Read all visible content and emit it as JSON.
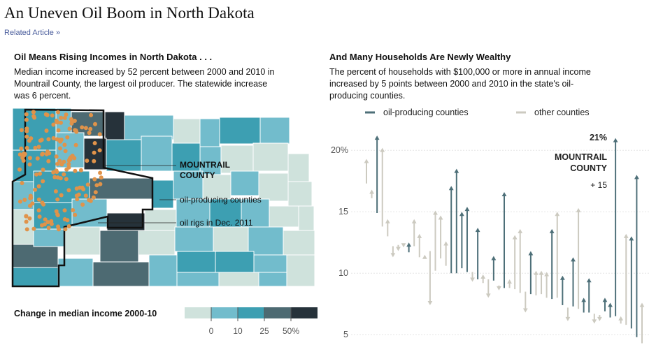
{
  "page": {
    "title": "An Uneven Oil Boom in North Dakota",
    "related_link": "Related Article »"
  },
  "left": {
    "heading": "Oil Means Rising Incomes in North Dakota . . .",
    "description": "Median income increased by 52 percent between 2000 and 2010 in Mountrail County, the largest oil producer. The statewide increase was 6 percent.",
    "labels": {
      "county_line1": "MOUNTRAIL",
      "county_line2": "COUNTY",
      "oil_producing": "oil-producing counties",
      "oil_rigs": "oil rigs in Dec. 2011"
    },
    "scale": {
      "title": "Change in median income 2000-10",
      "ticks": [
        "0",
        "10",
        "25",
        "50%"
      ],
      "colors": [
        "#cfe2dc",
        "#72bccc",
        "#3d9fb2",
        "#4d6a72",
        "#26323a"
      ]
    },
    "colors": {
      "light": "#cfe2dc",
      "mid": "#72bccc",
      "teal": "#3d9fb2",
      "slate": "#4d6a72",
      "dark": "#26323a",
      "rig": "#e0934a"
    }
  },
  "right": {
    "heading": "And Many Households Are Newly Wealthy",
    "description": "The percent of households with $100,000 or more in annual income increased by 5 points between 2000 and 2010 in the state's oil-producing counties.",
    "annotation": {
      "value": "21%",
      "county_line1": "MOUNTRAIL",
      "county_line2": "COUNTY",
      "change": "+ 15"
    }
  },
  "chart_data": {
    "type": "arrow",
    "title": "And Many Households Are Newly Wealthy",
    "ylabel": "",
    "yticks": [
      20,
      15,
      10,
      5
    ],
    "ytick_labels": [
      "20%",
      "15",
      "10",
      "5"
    ],
    "ylim": [
      4.5,
      22
    ],
    "series_meta": [
      {
        "name": "oil-producing counties",
        "color": "#4d6f78"
      },
      {
        "name": "other counties",
        "color": "#cccac0"
      }
    ],
    "arrows": [
      {
        "from": 17.3,
        "to": 19.3,
        "group": "other"
      },
      {
        "from": 16.1,
        "to": 16.8,
        "group": "other"
      },
      {
        "from": 14.9,
        "to": 21.2,
        "group": "oil"
      },
      {
        "from": 13.8,
        "to": 20.2,
        "group": "other"
      },
      {
        "from": 13.0,
        "to": 14.4,
        "group": "other"
      },
      {
        "from": 12.2,
        "to": 11.3,
        "group": "other"
      },
      {
        "from": 12.3,
        "to": 11.8,
        "group": "other"
      },
      {
        "from": 12.2,
        "to": 12.1,
        "group": "other"
      },
      {
        "from": 11.7,
        "to": 12.5,
        "group": "oil"
      },
      {
        "from": 12.2,
        "to": 14.4,
        "group": "other"
      },
      {
        "from": 11.3,
        "to": 13.2,
        "group": "other"
      },
      {
        "from": 11.3,
        "to": 11.5,
        "group": "other"
      },
      {
        "from": 11.8,
        "to": 7.4,
        "group": "other"
      },
      {
        "from": 10.2,
        "to": 15.1,
        "group": "other"
      },
      {
        "from": 11.2,
        "to": 14.7,
        "group": "other"
      },
      {
        "from": 10.6,
        "to": 12.6,
        "group": "other"
      },
      {
        "from": 10.0,
        "to": 17.1,
        "group": "oil"
      },
      {
        "from": 10.0,
        "to": 18.5,
        "group": "oil"
      },
      {
        "from": 10.4,
        "to": 15.0,
        "group": "oil"
      },
      {
        "from": 10.1,
        "to": 15.4,
        "group": "oil"
      },
      {
        "from": 10.1,
        "to": 9.3,
        "group": "other"
      },
      {
        "from": 9.5,
        "to": 13.7,
        "group": "oil"
      },
      {
        "from": 9.2,
        "to": 9.9,
        "group": "other"
      },
      {
        "from": 9.5,
        "to": 8.0,
        "group": "other"
      },
      {
        "from": 9.4,
        "to": 11.4,
        "group": "oil"
      },
      {
        "from": 9.0,
        "to": 8.6,
        "group": "other"
      },
      {
        "from": 8.8,
        "to": 16.6,
        "group": "oil"
      },
      {
        "from": 8.8,
        "to": 9.5,
        "group": "other"
      },
      {
        "from": 8.7,
        "to": 13.1,
        "group": "other"
      },
      {
        "from": 8.4,
        "to": 13.6,
        "group": "other"
      },
      {
        "from": 8.5,
        "to": 6.8,
        "group": "other"
      },
      {
        "from": 8.3,
        "to": 11.8,
        "group": "oil"
      },
      {
        "from": 8.2,
        "to": 10.2,
        "group": "other"
      },
      {
        "from": 8.3,
        "to": 10.2,
        "group": "other"
      },
      {
        "from": 8.0,
        "to": 10.1,
        "group": "other"
      },
      {
        "from": 7.9,
        "to": 13.6,
        "group": "oil"
      },
      {
        "from": 8.0,
        "to": 15.0,
        "group": "other"
      },
      {
        "from": 7.4,
        "to": 9.8,
        "group": "oil"
      },
      {
        "from": 7.2,
        "to": 6.1,
        "group": "other"
      },
      {
        "from": 7.3,
        "to": 11.3,
        "group": "oil"
      },
      {
        "from": 7.1,
        "to": 15.3,
        "group": "other"
      },
      {
        "from": 6.8,
        "to": 8.0,
        "group": "oil"
      },
      {
        "from": 6.8,
        "to": 9.6,
        "group": "oil"
      },
      {
        "from": 6.7,
        "to": 5.9,
        "group": "other"
      },
      {
        "from": 6.6,
        "to": 6.1,
        "group": "other"
      },
      {
        "from": 6.9,
        "to": 8.0,
        "group": "oil"
      },
      {
        "from": 6.4,
        "to": 7.6,
        "group": "oil"
      },
      {
        "from": 6.5,
        "to": 21.0,
        "group": "oil"
      },
      {
        "from": 5.9,
        "to": 6.5,
        "group": "other"
      },
      {
        "from": 5.8,
        "to": 13.2,
        "group": "other"
      },
      {
        "from": 5.5,
        "to": 13.0,
        "group": "oil"
      },
      {
        "from": 4.8,
        "to": 18.0,
        "group": "oil"
      },
      {
        "from": 4.3,
        "to": 7.6,
        "group": "other"
      }
    ]
  }
}
